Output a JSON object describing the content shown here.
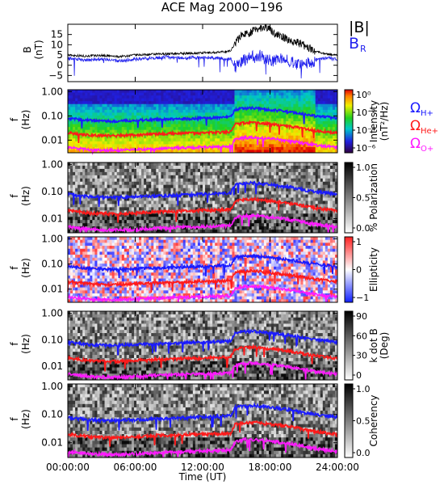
{
  "chart_data": {
    "title": "ACE Mag 2000−196",
    "x_axis": {
      "label": "Time (UT)",
      "range_hours": [
        0,
        24
      ],
      "tick_hours": [
        0,
        6,
        12,
        18,
        24
      ],
      "tick_labels": [
        "00:00:00",
        "06:00:00",
        "12:00:00",
        "18:00:00",
        "24:00:00"
      ]
    },
    "panels": [
      {
        "type": "line",
        "ylabel": "B",
        "yunit": "(nT)",
        "ylim": [
          -8,
          20
        ],
        "yticks": [
          15,
          10,
          5,
          0,
          -5
        ],
        "ytick_labels": [
          "15",
          "10",
          "5",
          "0",
          "−5"
        ],
        "legend": [
          {
            "text": "|B|",
            "color": "#000000"
          },
          {
            "text": "B",
            "sub": "R",
            "color": "#2222ee"
          }
        ],
        "series": [
          {
            "name": "|B|",
            "color": "#000000",
            "x": [
              0,
              1.5,
              3,
              4.5,
              6,
              7.5,
              9,
              10.5,
              12,
              13.5,
              14.5,
              14.9,
              15.5,
              16.2,
              17,
              17.6,
              18.3,
              19,
              19.8,
              20.5,
              21.3,
              22,
              23,
              24
            ],
            "y": [
              5,
              4.5,
              4.8,
              4.2,
              5,
              5.3,
              5.6,
              5.8,
              6,
              6.3,
              7,
              11,
              15,
              16,
              18,
              19,
              16,
              14,
              12,
              11,
              9,
              7,
              5.5,
              5
            ]
          },
          {
            "name": "B_R",
            "color": "#2222ee",
            "x": [
              0,
              1.5,
              3,
              4.5,
              6,
              7.5,
              9,
              10.5,
              12,
              13.5,
              14.5,
              14.9,
              15.5,
              16.2,
              17,
              17.6,
              18.3,
              19,
              19.8,
              20.5,
              21.3,
              22,
              23,
              24
            ],
            "y": [
              3.5,
              2.5,
              3,
              2,
              3,
              3.5,
              4,
              3.5,
              4,
              3.5,
              3,
              -1,
              2,
              4,
              5,
              3,
              2,
              3,
              2,
              0,
              1,
              2.5,
              3.5,
              3
            ]
          }
        ]
      },
      {
        "type": "heatmap",
        "quantity": "Power spectral intensity",
        "ylabel": "f",
        "yunit": "(Hz)",
        "ylog": true,
        "ylim": [
          0.003,
          1.2
        ],
        "yticks": [
          1,
          0.1,
          0.01
        ],
        "ytick_labels": [
          "1.00",
          "0.10",
          "0.01"
        ],
        "colorbar": {
          "label": "Intensity",
          "unit": "(nT²/Hz)",
          "tick_labels": [
            "10⁰",
            "10⁻²",
            "10⁻⁴",
            "10⁻⁶"
          ],
          "range_log10": [
            -7,
            1
          ]
        },
        "legend": [
          {
            "text": "Ω",
            "sub": "H+",
            "color": "#1a1aff"
          },
          {
            "text": "Ω",
            "sub": "He+",
            "color": "#ff1a1a"
          },
          {
            "text": "Ω",
            "sub": "O+",
            "color": "#ff1aff"
          }
        ]
      },
      {
        "type": "heatmap",
        "quantity": "Degree of polarization",
        "ylabel": "f",
        "yunit": "(Hz)",
        "ylog": true,
        "ylim": [
          0.003,
          1.2
        ],
        "yticks": [
          1,
          0.1,
          0.01
        ],
        "ytick_labels": [
          "1.00",
          "0.10",
          "0.01"
        ],
        "colorbar": {
          "label": "% Polarization",
          "unit": "",
          "tick_labels": [
            "1.0",
            "0.5",
            "0.0"
          ],
          "range": [
            0,
            1
          ]
        }
      },
      {
        "type": "heatmap",
        "quantity": "Ellipticity",
        "ylabel": "f",
        "yunit": "(Hz)",
        "ylog": true,
        "ylim": [
          0.003,
          1.2
        ],
        "yticks": [
          1,
          0.1,
          0.01
        ],
        "ytick_labels": [
          "1.00",
          "0.10",
          "0.01"
        ],
        "colorbar": {
          "label": "Ellipticity",
          "unit": "",
          "tick_labels": [
            "1",
            "0",
            "−1"
          ],
          "range": [
            -1,
            1
          ]
        }
      },
      {
        "type": "heatmap",
        "quantity": "Wave normal angle",
        "ylabel": "f",
        "yunit": "(Hz)",
        "ylog": true,
        "ylim": [
          0.003,
          1.2
        ],
        "yticks": [
          1,
          0.1,
          0.01
        ],
        "ytick_labels": [
          "1.00",
          "0.10",
          "0.01"
        ],
        "colorbar": {
          "label": "k dot B",
          "unit": "(Deg)",
          "tick_labels": [
            "90",
            "60",
            "30",
            "0"
          ],
          "range": [
            0,
            90
          ]
        }
      },
      {
        "type": "heatmap",
        "quantity": "Coherency",
        "ylabel": "f",
        "yunit": "(Hz)",
        "ylog": true,
        "ylim": [
          0.003,
          1.2
        ],
        "yticks": [
          1,
          0.1,
          0.01
        ],
        "ytick_labels": [
          "1.00",
          "0.10",
          "0.01"
        ],
        "colorbar": {
          "label": "Coherency",
          "unit": "",
          "tick_labels": [
            "1.0",
            "0.5",
            "0.0"
          ],
          "range": [
            0,
            1
          ]
        }
      }
    ],
    "gyrofrequency_curves": [
      {
        "name": "ΩH+",
        "color": "#1a1aff",
        "x": [
          0,
          2,
          4,
          6,
          8,
          10,
          12,
          13.5,
          14.5,
          14.9,
          15.5,
          16.5,
          17.5,
          18.5,
          19.5,
          20.5,
          21.3,
          22,
          23,
          24
        ],
        "y": [
          0.08,
          0.065,
          0.06,
          0.065,
          0.07,
          0.075,
          0.08,
          0.085,
          0.09,
          0.18,
          0.2,
          0.21,
          0.19,
          0.17,
          0.15,
          0.13,
          0.11,
          0.1,
          0.09,
          0.08
        ]
      },
      {
        "name": "ΩHe+",
        "color": "#ff1a1a",
        "x": [
          0,
          2,
          4,
          6,
          8,
          10,
          12,
          13.5,
          14.5,
          14.9,
          15.5,
          16.5,
          17.5,
          18.5,
          19.5,
          20.5,
          21.3,
          22,
          23,
          24
        ],
        "y": [
          0.02,
          0.016,
          0.015,
          0.016,
          0.018,
          0.019,
          0.02,
          0.021,
          0.022,
          0.045,
          0.05,
          0.053,
          0.048,
          0.043,
          0.038,
          0.033,
          0.028,
          0.025,
          0.022,
          0.02
        ]
      },
      {
        "name": "ΩO+",
        "color": "#ff1aff",
        "x": [
          0,
          2,
          4,
          6,
          8,
          10,
          12,
          13.5,
          14.5,
          14.9,
          15.5,
          16.5,
          17.5,
          18.5,
          19.5,
          20.5,
          21.3,
          22,
          23,
          24
        ],
        "y": [
          0.005,
          0.004,
          0.0038,
          0.004,
          0.0045,
          0.0048,
          0.005,
          0.0053,
          0.0055,
          0.011,
          0.0125,
          0.013,
          0.012,
          0.011,
          0.0095,
          0.0083,
          0.007,
          0.0063,
          0.0055,
          0.005
        ]
      }
    ]
  }
}
